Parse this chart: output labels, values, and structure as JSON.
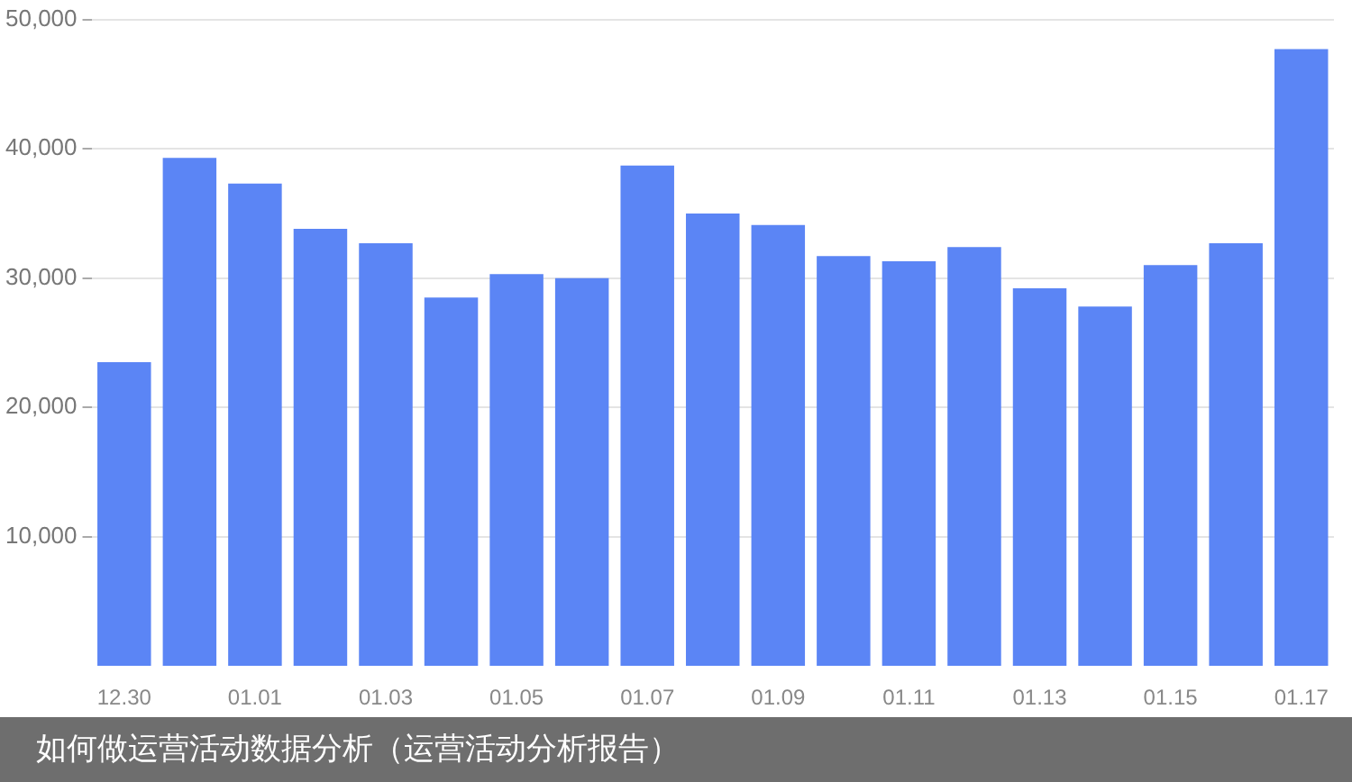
{
  "chart_data": {
    "type": "bar",
    "categories": [
      "12.30",
      null,
      "01.01",
      null,
      "01.03",
      null,
      "01.05",
      null,
      "01.07",
      null,
      "01.09",
      null,
      "01.11",
      null,
      "01.13",
      null,
      "01.15",
      null,
      "01.17"
    ],
    "values": [
      23500,
      39300,
      37300,
      33800,
      32700,
      28500,
      30300,
      30000,
      38700,
      35000,
      34100,
      31700,
      31300,
      32400,
      29200,
      27800,
      31000,
      32700,
      47700
    ],
    "color": "#5b85f5",
    "ylim": [
      0,
      50000
    ],
    "yticks": [
      {
        "value": 10000,
        "label": "10,000"
      },
      {
        "value": 20000,
        "label": "20,000"
      },
      {
        "value": 30000,
        "label": "30,000"
      },
      {
        "value": 40000,
        "label": "40,000"
      },
      {
        "value": 50000,
        "label": "50,000"
      }
    ],
    "grid": "y",
    "annotations": [
      "如何做运营活动数据分析（运营活动分析报告）"
    ]
  }
}
